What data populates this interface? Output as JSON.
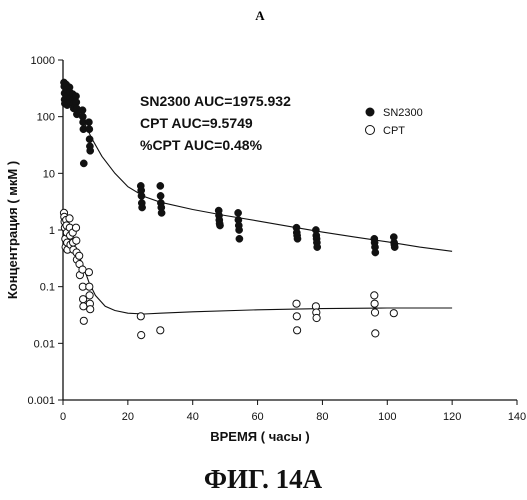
{
  "header_letter": "A",
  "figure_caption": "ФИГ. 14А",
  "colors": {
    "ink": "#111111",
    "background": "#ffffff"
  },
  "chart_data": {
    "type": "scatter",
    "title": "",
    "xlabel": "ВРЕМЯ ( часы )",
    "ylabel": "Концентрация ( мкМ )",
    "x_ticks": [
      0,
      20,
      40,
      60,
      80,
      100,
      120,
      140
    ],
    "y_scale": "log",
    "y_ticks": [
      {
        "value": 0.001,
        "label": "0.001"
      },
      {
        "value": 0.01,
        "label": "0.01"
      },
      {
        "value": 0.1,
        "label": "0.1"
      },
      {
        "value": 1,
        "label": "1"
      },
      {
        "value": 10,
        "label": "10"
      },
      {
        "value": 100,
        "label": "100"
      },
      {
        "value": 1000,
        "label": "1000"
      }
    ],
    "xlim": [
      0,
      140
    ],
    "ylim": [
      0.001,
      1000
    ],
    "grid": false,
    "legend_position": "top-right",
    "annotations": [
      "SN2300 AUC=1975.932",
      "CPT AUC=9.5749",
      "%CPT AUC=0.48%"
    ],
    "series": [
      {
        "name": "SN2300",
        "marker": "filled-circle",
        "points": [
          [
            0.3,
            400
          ],
          [
            0.4,
            340
          ],
          [
            0.5,
            260
          ],
          [
            0.5,
            200
          ],
          [
            0.6,
            170
          ],
          [
            1,
            370
          ],
          [
            1.1,
            300
          ],
          [
            1.2,
            230
          ],
          [
            1.3,
            160
          ],
          [
            2,
            330
          ],
          [
            2.1,
            270
          ],
          [
            2.2,
            210
          ],
          [
            2.3,
            180
          ],
          [
            3,
            250
          ],
          [
            3.1,
            200
          ],
          [
            3.2,
            170
          ],
          [
            3.3,
            140
          ],
          [
            4,
            230
          ],
          [
            4.1,
            180
          ],
          [
            4.2,
            140
          ],
          [
            4.3,
            110
          ],
          [
            6,
            130
          ],
          [
            6.1,
            100
          ],
          [
            6.2,
            80
          ],
          [
            6.3,
            60
          ],
          [
            6.4,
            15
          ],
          [
            8,
            80
          ],
          [
            8.1,
            60
          ],
          [
            8.2,
            40
          ],
          [
            8.3,
            30
          ],
          [
            8.4,
            25
          ],
          [
            24,
            6
          ],
          [
            24.1,
            5
          ],
          [
            24.2,
            4
          ],
          [
            24.3,
            3
          ],
          [
            24.4,
            2.5
          ],
          [
            30,
            6
          ],
          [
            30.1,
            4
          ],
          [
            30.2,
            3
          ],
          [
            30.3,
            2.5
          ],
          [
            30.4,
            2
          ],
          [
            48,
            2.2
          ],
          [
            48.1,
            1.8
          ],
          [
            48.2,
            1.5
          ],
          [
            48.3,
            1.3
          ],
          [
            48.4,
            1.2
          ],
          [
            54,
            2
          ],
          [
            54.1,
            1.5
          ],
          [
            54.2,
            1.2
          ],
          [
            54.3,
            1
          ],
          [
            54.4,
            0.7
          ],
          [
            72,
            1.1
          ],
          [
            72.1,
            0.9
          ],
          [
            72.2,
            0.8
          ],
          [
            72.3,
            0.7
          ],
          [
            78,
            1
          ],
          [
            78.1,
            0.8
          ],
          [
            78.2,
            0.7
          ],
          [
            78.3,
            0.6
          ],
          [
            78.4,
            0.5
          ],
          [
            96,
            0.7
          ],
          [
            96.1,
            0.6
          ],
          [
            96.2,
            0.5
          ],
          [
            96.3,
            0.4
          ],
          [
            102,
            0.75
          ],
          [
            102.1,
            0.6
          ],
          [
            102.2,
            0.55
          ],
          [
            102.3,
            0.5
          ]
        ],
        "fit": [
          [
            0.5,
            380
          ],
          [
            3,
            180
          ],
          [
            6,
            90
          ],
          [
            9,
            40
          ],
          [
            12,
            20
          ],
          [
            16,
            10
          ],
          [
            20,
            5.8
          ],
          [
            25,
            3.9
          ],
          [
            30,
            3.1
          ],
          [
            40,
            2.3
          ],
          [
            50,
            1.8
          ],
          [
            60,
            1.45
          ],
          [
            70,
            1.15
          ],
          [
            80,
            0.92
          ],
          [
            90,
            0.75
          ],
          [
            100,
            0.62
          ],
          [
            110,
            0.5
          ],
          [
            120,
            0.42
          ]
        ]
      },
      {
        "name": "CPT",
        "marker": "open-circle",
        "points": [
          [
            0.3,
            2
          ],
          [
            0.4,
            1.7
          ],
          [
            0.5,
            1.4
          ],
          [
            0.6,
            1.1
          ],
          [
            0.7,
            0.7
          ],
          [
            0.8,
            0.5
          ],
          [
            1,
            1.5
          ],
          [
            1.1,
            1.2
          ],
          [
            1.2,
            0.9
          ],
          [
            1.3,
            0.6
          ],
          [
            1.4,
            0.45
          ],
          [
            2,
            1.6
          ],
          [
            2.1,
            1.1
          ],
          [
            2.2,
            0.8
          ],
          [
            2.3,
            0.55
          ],
          [
            3,
            0.9
          ],
          [
            3.1,
            0.6
          ],
          [
            3.2,
            0.45
          ],
          [
            4,
            1.1
          ],
          [
            4.1,
            0.65
          ],
          [
            4.2,
            0.4
          ],
          [
            4.3,
            0.3
          ],
          [
            5,
            0.35
          ],
          [
            5.1,
            0.25
          ],
          [
            5.2,
            0.16
          ],
          [
            6,
            0.2
          ],
          [
            6.1,
            0.1
          ],
          [
            6.2,
            0.06
          ],
          [
            6.3,
            0.045
          ],
          [
            6.4,
            0.025
          ],
          [
            8,
            0.18
          ],
          [
            8.1,
            0.1
          ],
          [
            8.2,
            0.07
          ],
          [
            8.3,
            0.05
          ],
          [
            8.4,
            0.04
          ],
          [
            24,
            0.03
          ],
          [
            24.1,
            0.014
          ],
          [
            30,
            0.017
          ],
          [
            72,
            0.05
          ],
          [
            72.1,
            0.03
          ],
          [
            72.2,
            0.017
          ],
          [
            78,
            0.045
          ],
          [
            78.1,
            0.035
          ],
          [
            78.2,
            0.028
          ],
          [
            96,
            0.07
          ],
          [
            96.1,
            0.05
          ],
          [
            96.2,
            0.035
          ],
          [
            96.3,
            0.015
          ],
          [
            102,
            0.034
          ]
        ],
        "fit": [
          [
            0,
            1.2
          ],
          [
            2,
            0.8
          ],
          [
            4,
            0.45
          ],
          [
            6,
            0.25
          ],
          [
            8,
            0.12
          ],
          [
            10,
            0.07
          ],
          [
            13,
            0.045
          ],
          [
            16,
            0.038
          ],
          [
            20,
            0.034
          ],
          [
            25,
            0.033
          ],
          [
            30,
            0.034
          ],
          [
            40,
            0.036
          ],
          [
            60,
            0.039
          ],
          [
            80,
            0.041
          ],
          [
            100,
            0.042
          ],
          [
            120,
            0.042
          ]
        ]
      }
    ]
  }
}
